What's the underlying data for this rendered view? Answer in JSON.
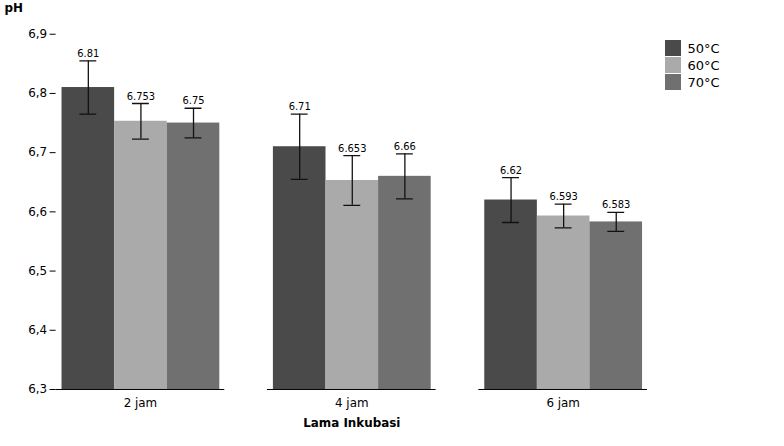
{
  "chart_data": {
    "type": "bar",
    "xlabel": "Lama Inkubasi",
    "ylabel": "pH",
    "categories": [
      "2 jam",
      "4 jam",
      "6 jam"
    ],
    "series": [
      {
        "name": "50°C",
        "color": "#4a4a4a",
        "values": [
          6.81,
          6.71,
          6.62
        ],
        "errors": [
          0.045,
          0.055,
          0.038
        ]
      },
      {
        "name": "60°C",
        "color": "#aaaaaa",
        "values": [
          6.753,
          6.653,
          6.593
        ],
        "errors": [
          0.03,
          0.042,
          0.02
        ]
      },
      {
        "name": "70°C",
        "color": "#707070",
        "values": [
          6.75,
          6.66,
          6.583
        ],
        "errors": [
          0.025,
          0.038,
          0.016
        ]
      }
    ],
    "ylim": [
      6.3,
      6.9
    ],
    "yticks": [
      {
        "value": 6.3,
        "label": "6,3"
      },
      {
        "value": 6.4,
        "label": "6,4"
      },
      {
        "value": 6.5,
        "label": "6,5"
      },
      {
        "value": 6.6,
        "label": "6,6"
      },
      {
        "value": 6.7,
        "label": "6,7"
      },
      {
        "value": 6.8,
        "label": "6,8"
      },
      {
        "value": 6.9,
        "label": "6,9"
      }
    ],
    "grid": false,
    "legend": "right",
    "data_labels": true
  }
}
